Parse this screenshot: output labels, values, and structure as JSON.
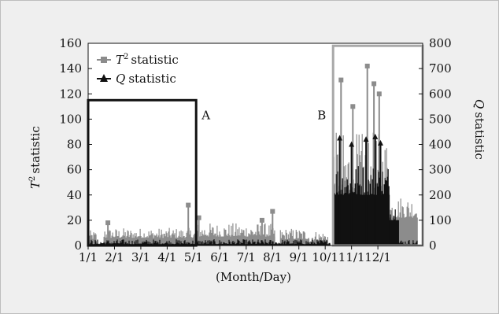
{
  "chart_data": {
    "type": "line",
    "xlabel": "(Month/Day)",
    "ylabel_left": "statistic",
    "ylabel_left_symbol": "T",
    "ylabel_left_sup": "2",
    "ylabel_right": "statistic",
    "ylabel_right_symbol": "Q",
    "ylim_left": [
      0,
      160
    ],
    "ylim_right": [
      0,
      800
    ],
    "yticks_left": [
      0,
      20,
      40,
      60,
      80,
      100,
      120,
      140,
      160
    ],
    "yticks_right": [
      0,
      100,
      200,
      300,
      400,
      500,
      600,
      700,
      800
    ],
    "x_ticks": [
      "1/1",
      "2/1",
      "3/1",
      "4/1",
      "5/1",
      "6/1",
      "7/1",
      "8/1",
      "9/1",
      "10/1",
      "11/1",
      "12/1"
    ],
    "legend": [
      {
        "symbol": "T",
        "sup": "2",
        "label": "statistic",
        "color": "#8c8c8c",
        "marker": "square"
      },
      {
        "symbol": "Q",
        "sup": "",
        "label": "statistic",
        "color": "#111111",
        "marker": "triangle"
      }
    ],
    "annotations": [
      {
        "label": "A",
        "from_month": 1.0,
        "to_month": 5.1,
        "level_T2": 115,
        "color": "#111111"
      },
      {
        "label": "B",
        "from_month": 10.3,
        "to_month": 13.7,
        "level_T2": 158,
        "color": "#a8a8a8"
      }
    ],
    "series": [
      {
        "name": "T2 statistic",
        "axis": "left",
        "color": "#8c8c8c",
        "segments": [
          {
            "from_month": 1.0,
            "to_month": 1.3,
            "baseline": 5,
            "peak": 12
          },
          {
            "from_month": 1.6,
            "to_month": 5.15,
            "baseline": 6,
            "peak": 14
          },
          {
            "from_month": 5.15,
            "to_month": 8.1,
            "baseline": 7,
            "peak": 18
          },
          {
            "from_month": 8.3,
            "to_month": 9.4,
            "baseline": 5,
            "peak": 14
          },
          {
            "from_month": 9.5,
            "to_month": 10.1,
            "baseline": 4,
            "peak": 12
          },
          {
            "from_month": 10.3,
            "to_month": 12.45,
            "baseline": 40,
            "peak": 90
          },
          {
            "from_month": 12.45,
            "to_month": 13.5,
            "baseline": 22,
            "peak": 40
          }
        ],
        "spikes": [
          {
            "month": 1.75,
            "value": 18
          },
          {
            "month": 4.8,
            "value": 32
          },
          {
            "month": 5.2,
            "value": 22
          },
          {
            "month": 7.6,
            "value": 20
          },
          {
            "month": 8.0,
            "value": 27
          },
          {
            "month": 10.6,
            "value": 131
          },
          {
            "month": 11.05,
            "value": 110
          },
          {
            "month": 11.6,
            "value": 142
          },
          {
            "month": 11.85,
            "value": 128
          },
          {
            "month": 12.05,
            "value": 120
          }
        ]
      },
      {
        "name": "Q statistic",
        "axis": "right",
        "color": "#111111",
        "segments": [
          {
            "from_month": 1.0,
            "to_month": 10.2,
            "baseline": 5,
            "peak": 25
          },
          {
            "from_month": 10.3,
            "to_month": 12.45,
            "baseline": 200,
            "peak": 330
          },
          {
            "from_month": 12.45,
            "to_month": 12.8,
            "baseline": 100,
            "peak": 180
          },
          {
            "from_month": 12.8,
            "to_month": 13.5,
            "baseline": 5,
            "peak": 25
          }
        ],
        "spikes": [
          {
            "month": 10.55,
            "value": 425
          },
          {
            "month": 11.0,
            "value": 400
          },
          {
            "month": 11.55,
            "value": 420
          },
          {
            "month": 11.9,
            "value": 430
          },
          {
            "month": 12.1,
            "value": 405
          }
        ]
      }
    ]
  }
}
